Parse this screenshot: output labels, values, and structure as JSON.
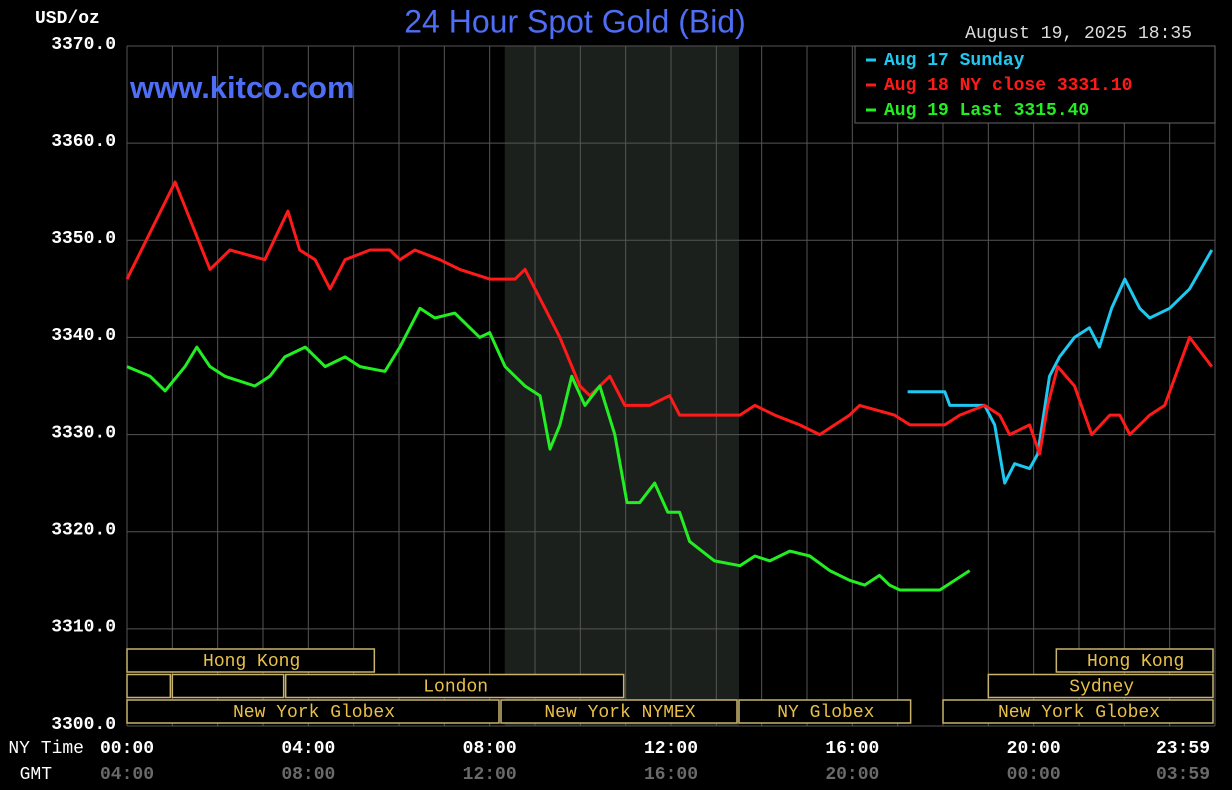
{
  "chart_data": {
    "type": "line",
    "title": "24 Hour Spot Gold (Bid)",
    "y_label": "USD/oz",
    "timestamp": "August 19, 2025 18:35",
    "watermark": "www.kitco.com",
    "x_row_labels": [
      "NY Time",
      "GMT"
    ],
    "xlim": [
      0,
      24
    ],
    "xticks": [
      {
        "value": 0,
        "label": "00:00"
      },
      {
        "value": 4,
        "label": "04:00"
      },
      {
        "value": 8,
        "label": "08:00"
      },
      {
        "value": 12,
        "label": "12:00"
      },
      {
        "value": 16,
        "label": "16:00"
      },
      {
        "value": 20,
        "label": "20:00"
      },
      {
        "value": 23.983,
        "label": "23:59"
      }
    ],
    "gmt_tick_labels": [
      "04:00",
      "08:00",
      "12:00",
      "16:00",
      "20:00",
      "00:00",
      "03:59"
    ],
    "xgrid": [
      0,
      1,
      2,
      3,
      4,
      5,
      6,
      7,
      8,
      9,
      10,
      11,
      12,
      13,
      14,
      15,
      16,
      17,
      18,
      19,
      20,
      21,
      22,
      23,
      24
    ],
    "ylim": [
      3300,
      3370
    ],
    "yticks": [
      {
        "value": 3300,
        "label": "3300.0"
      },
      {
        "value": 3310,
        "label": "3310.0"
      },
      {
        "value": 3320,
        "label": "3320.0"
      },
      {
        "value": 3330,
        "label": "3330.0"
      },
      {
        "value": 3340,
        "label": "3340.0"
      },
      {
        "value": 3350,
        "label": "3350.0"
      },
      {
        "value": 3360,
        "label": "3360.0"
      },
      {
        "value": 3370,
        "label": "3370.0"
      }
    ],
    "grid": true,
    "legend": "top-right",
    "shaded_range": [
      8.333,
      13.5
    ],
    "session_rows": [
      [
        {
          "name": "Hong Kong",
          "start": 0,
          "end": 5.5
        },
        {
          "name": "Hong Kong",
          "start": 20.5,
          "end": 24
        }
      ],
      [
        {
          "name": null,
          "start": 0,
          "end": 1
        },
        {
          "name": null,
          "start": 1,
          "end": 3.5
        },
        {
          "name": "London",
          "start": 3.5,
          "end": 11
        },
        {
          "name": "Sydney",
          "start": 19,
          "end": 24
        }
      ],
      [
        {
          "name": "New York Globex",
          "start": 0,
          "end": 8.25
        },
        {
          "name": "New York NYMEX",
          "start": 8.25,
          "end": 13.5
        },
        {
          "name": "NY Globex",
          "start": 13.5,
          "end": 17.33
        },
        {
          "name": "New York Globex",
          "start": 18,
          "end": 24
        }
      ]
    ],
    "series": [
      {
        "name": "Aug 17 Sunday",
        "color": "#1ec8f0",
        "x": [
          17.22,
          18.04,
          18.15,
          18.59,
          18.92,
          19.14,
          19.36,
          19.58,
          19.91,
          20.09,
          20.35,
          20.57,
          20.9,
          21.23,
          21.45,
          21.72,
          22.01,
          22.34,
          22.56,
          23.0,
          23.44,
          23.93
        ],
        "values": [
          3334.4,
          3334.4,
          3333,
          3333,
          3333,
          3331,
          3325,
          3327,
          3326.5,
          3328,
          3336,
          3338,
          3340,
          3341,
          3339,
          3343,
          3346,
          3343,
          3342,
          3343,
          3345,
          3349
        ]
      },
      {
        "name": "Aug 18 NY close 3331.10",
        "color": "#ff1a1a",
        "x": [
          0,
          1.06,
          1.83,
          2.27,
          3.04,
          3.55,
          3.81,
          4.15,
          4.48,
          4.81,
          5.36,
          5.8,
          6.02,
          6.35,
          6.9,
          7.34,
          8.0,
          8.56,
          8.78,
          9.22,
          9.55,
          9.99,
          10.21,
          10.65,
          10.98,
          11.53,
          11.97,
          12.19,
          12.86,
          13.52,
          13.85,
          14.29,
          14.84,
          15.28,
          15.94,
          16.16,
          16.93,
          17.27,
          18.04,
          18.37,
          18.92,
          19.25,
          19.47,
          19.91,
          20.13,
          20.31,
          20.53,
          20.9,
          21.28,
          21.68,
          21.9,
          22.12,
          22.56,
          22.89,
          23.44,
          23.93
        ],
        "values": [
          3346,
          3356,
          3347,
          3349,
          3348,
          3353,
          3349,
          3348,
          3345,
          3348,
          3349,
          3349,
          3348,
          3349,
          3348,
          3347,
          3346,
          3346,
          3347,
          3343,
          3340,
          3335,
          3334,
          3336,
          3333,
          3333,
          3334,
          3332,
          3332,
          3332,
          3333,
          3332,
          3331,
          3330,
          3332,
          3333,
          3332,
          3331,
          3331,
          3332,
          3333,
          3332,
          3330,
          3331,
          3328,
          3333,
          3337,
          3335,
          3330,
          3332,
          3332,
          3330,
          3332,
          3333,
          3340,
          3337
        ]
      },
      {
        "name": "Aug 19 Last 3315.40",
        "color": "#22ee22",
        "x": [
          0,
          0.51,
          0.84,
          1.28,
          1.54,
          1.83,
          2.16,
          2.82,
          3.15,
          3.48,
          3.93,
          4.37,
          4.81,
          5.14,
          5.69,
          6.02,
          6.46,
          6.79,
          7.23,
          7.78,
          8.0,
          8.34,
          8.78,
          9.11,
          9.33,
          9.55,
          9.81,
          10.1,
          10.43,
          10.76,
          11.03,
          11.31,
          11.64,
          11.93,
          12.19,
          12.41,
          12.96,
          13.52,
          13.85,
          14.18,
          14.62,
          15.06,
          15.5,
          15.94,
          16.27,
          16.6,
          16.82,
          17.05,
          17.93,
          18.26,
          18.59
        ],
        "values": [
          3337,
          3336,
          3334.5,
          3337,
          3339,
          3337,
          3336,
          3335,
          3336,
          3338,
          3339,
          3337,
          3338,
          3337,
          3336.5,
          3339,
          3343,
          3342,
          3342.5,
          3340,
          3340.5,
          3337,
          3335,
          3334,
          3328.5,
          3331,
          3336,
          3333,
          3335,
          3330,
          3323,
          3323,
          3325,
          3322,
          3322,
          3319,
          3317,
          3316.5,
          3317.5,
          3317,
          3318,
          3317.5,
          3316,
          3315,
          3314.5,
          3315.5,
          3314.5,
          3314,
          3314,
          3315,
          3316
        ]
      }
    ]
  }
}
